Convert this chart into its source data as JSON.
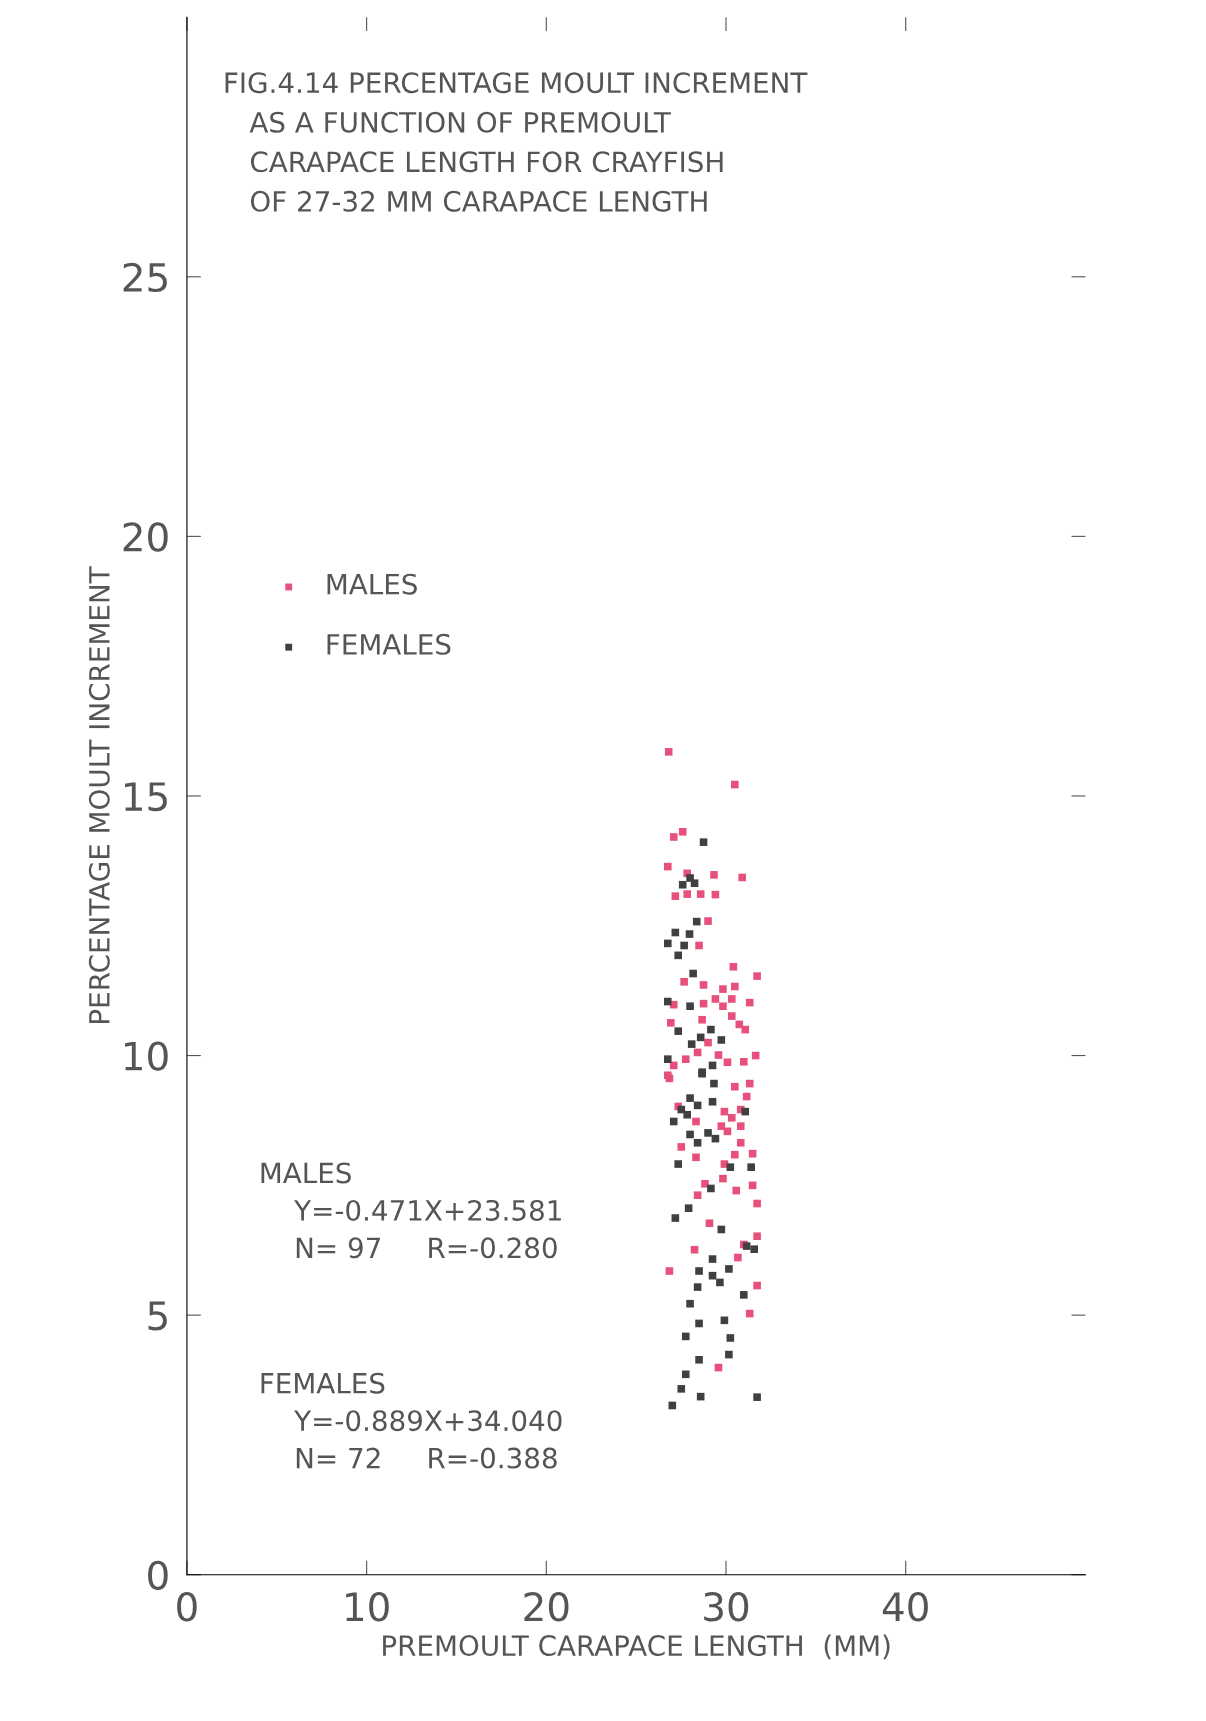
{
  "chart_data": {
    "type": "scatter",
    "title": "FIG.4.14 PERCENTAGE MOULT INCREMENT\n   AS A FUNCTION OF PREMOULT\n   CARAPACE LENGTH FOR CRAYFISH\n   OF 27-32 MM CARAPACE LENGTH",
    "xlabel": "PREMOULT CARAPACE LENGTH  (MM)",
    "ylabel": "PERCENTAGE MOULT INCREMENT",
    "xlim": [
      0,
      50
    ],
    "ylim": [
      0,
      30
    ],
    "xticks": [
      0,
      10,
      20,
      30,
      40
    ],
    "yticks": [
      0,
      5,
      10,
      15,
      20,
      25
    ],
    "marker": "square",
    "legend": "top left",
    "grid": false,
    "annotations": [
      "MALES\n    Y=-0.471X+23.581\n    N= 97     R=-0.280",
      "FEMALES\n    Y=-0.889X+34.040\n    N= 72     R=-0.388"
    ],
    "series": [
      {
        "name": "MALES",
        "color": "#e8507c",
        "x": [
          26.81,
          30.49,
          27.09,
          27.59,
          26.76,
          27.84,
          29.33,
          30.9,
          27.18,
          27.84,
          28.59,
          29.41,
          29.0,
          28.5,
          30.41,
          31.73,
          27.67,
          28.75,
          29.83,
          30.49,
          29.41,
          30.32,
          31.32,
          27.09,
          28.75,
          29.83,
          26.93,
          28.67,
          30.32,
          30.74,
          31.07,
          29.0,
          28.42,
          27.76,
          29.58,
          30.08,
          30.99,
          31.65,
          27.09,
          26.76,
          26.85,
          30.49,
          31.32,
          31.15,
          27.34,
          29.91,
          30.32,
          30.82,
          28.33,
          29.74,
          30.08,
          30.82,
          30.82,
          27.51,
          28.33,
          30.49,
          31.48,
          29.91,
          29.83,
          30.57,
          31.48,
          28.83,
          28.42,
          31.73,
          29.08,
          31.73,
          30.99,
          28.25,
          30.66,
          26.85,
          31.73,
          31.32,
          29.58
        ],
        "values": [
          15.85,
          15.22,
          14.21,
          14.31,
          13.64,
          13.51,
          13.48,
          13.43,
          13.07,
          13.11,
          13.11,
          13.1,
          12.59,
          12.12,
          11.71,
          11.53,
          11.42,
          11.36,
          11.28,
          11.33,
          11.09,
          11.09,
          11.02,
          10.98,
          11.0,
          10.95,
          10.63,
          10.69,
          10.76,
          10.6,
          10.5,
          10.25,
          10.06,
          9.93,
          10.01,
          9.87,
          9.88,
          10.0,
          9.81,
          9.62,
          9.56,
          9.4,
          9.46,
          9.21,
          9.02,
          8.92,
          8.8,
          8.96,
          8.73,
          8.64,
          8.54,
          8.64,
          8.32,
          8.24,
          8.04,
          8.09,
          8.11,
          7.91,
          7.63,
          7.4,
          7.5,
          7.53,
          7.31,
          7.15,
          6.77,
          6.52,
          6.36,
          6.26,
          6.11,
          5.85,
          5.57,
          5.03,
          3.99
        ]
      },
      {
        "name": "FEMALES",
        "color": "#404040",
        "x": [
          28.75,
          27.59,
          28.0,
          28.25,
          28.37,
          27.18,
          27.97,
          26.76,
          27.67,
          27.34,
          28.17,
          26.76,
          28.0,
          27.34,
          29.16,
          28.59,
          29.74,
          28.09,
          26.76,
          29.25,
          28.67,
          28.67,
          29.33,
          28.0,
          28.42,
          29.25,
          27.51,
          27.84,
          27.09,
          31.07,
          28.0,
          28.42,
          29.0,
          29.41,
          27.34,
          30.24,
          31.4,
          29.16,
          27.92,
          27.18,
          29.74,
          31.15,
          31.57,
          29.25,
          28.5,
          29.25,
          30.16,
          29.66,
          28.42,
          30.99,
          28.0,
          29.91,
          28.5,
          27.76,
          30.24,
          30.16,
          28.5,
          27.76,
          27.51,
          28.59,
          27.01,
          31.73
        ],
        "values": [
          14.11,
          13.29,
          13.42,
          13.32,
          12.58,
          12.37,
          12.34,
          12.16,
          12.12,
          11.93,
          11.58,
          11.04,
          10.95,
          10.47,
          10.5,
          10.35,
          10.3,
          10.22,
          9.93,
          9.81,
          9.68,
          9.65,
          9.46,
          9.18,
          9.04,
          9.11,
          8.96,
          8.86,
          8.73,
          8.92,
          8.48,
          8.32,
          8.51,
          8.4,
          7.91,
          7.85,
          7.85,
          7.44,
          7.06,
          6.87,
          6.65,
          6.33,
          6.27,
          6.08,
          5.85,
          5.76,
          5.89,
          5.63,
          5.54,
          5.39,
          5.22,
          4.9,
          4.84,
          4.59,
          4.56,
          4.24,
          4.14,
          3.86,
          3.58,
          3.43,
          3.26,
          3.42
        ]
      }
    ]
  }
}
